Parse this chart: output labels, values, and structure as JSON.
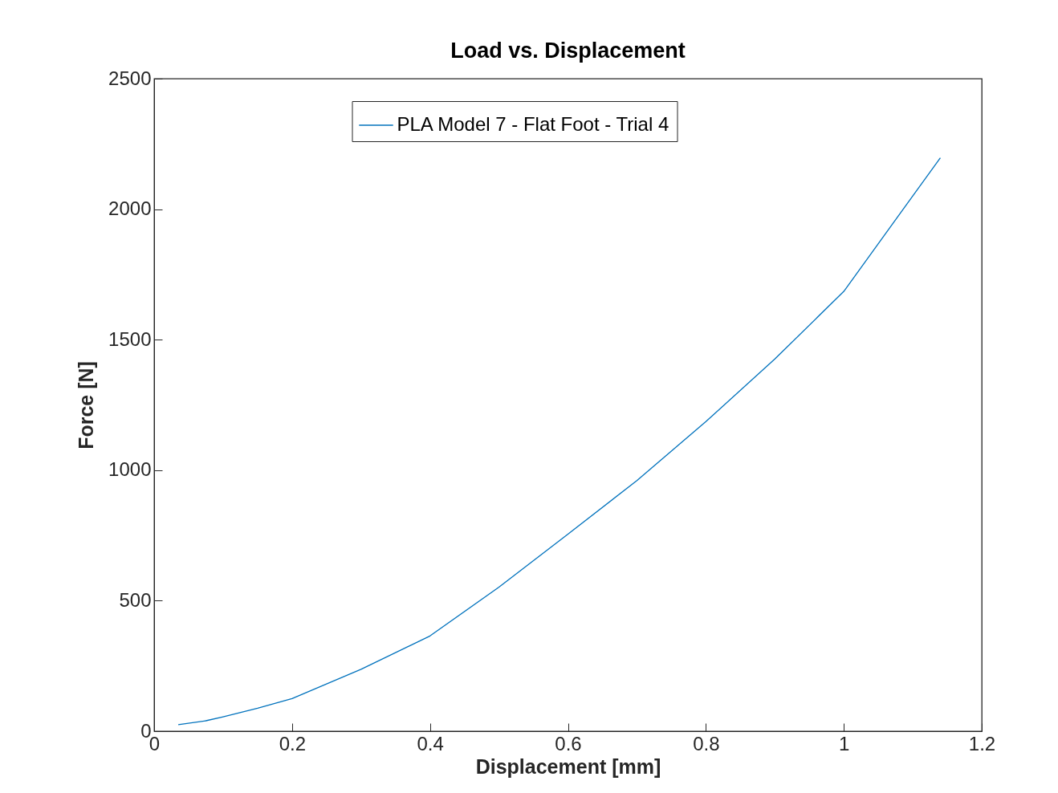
{
  "chart_data": {
    "type": "line",
    "title": "Load vs. Displacement",
    "xlabel": "Displacement [mm]",
    "ylabel": "Force [N]",
    "x": [
      0.035,
      0.075,
      0.1,
      0.15,
      0.2,
      0.3,
      0.4,
      0.5,
      0.6,
      0.7,
      0.8,
      0.9,
      1.0,
      1.14
    ],
    "series": [
      {
        "name": "PLA Model 7 - Flat Foot - Trial 4",
        "color": "#0072bd",
        "values": [
          25,
          40,
          55,
          88,
          125,
          237,
          365,
          552,
          755,
          960,
          1186,
          1426,
          1685,
          2197
        ]
      }
    ],
    "xlim": [
      0,
      1.2
    ],
    "xticks": [
      0,
      0.2,
      0.4,
      0.6,
      0.8,
      1,
      1.2
    ],
    "ylim": [
      0,
      2500
    ],
    "yticks": [
      0,
      500,
      1000,
      1500,
      2000,
      2500
    ],
    "legend": "top",
    "grid": false,
    "line_style": "solid",
    "marker": "none"
  }
}
